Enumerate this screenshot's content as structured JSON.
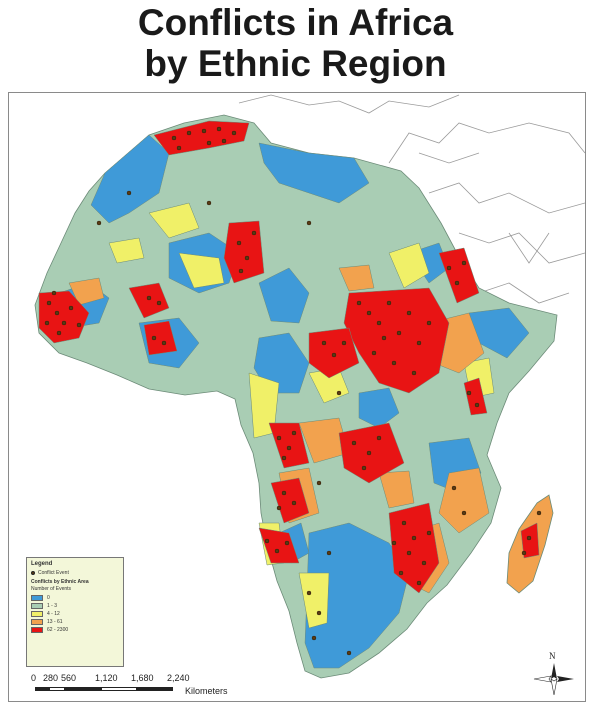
{
  "title": {
    "line1": "Conflicts in Africa",
    "line2": "by Ethnic Region"
  },
  "colors": {
    "ocean": "#ffffff",
    "neighbors": "#ffffff",
    "class_0": "#3f9ad8",
    "class_1_3": "#a9cdb4",
    "class_4_12": "#f0f068",
    "class_13_61": "#f2a24e",
    "class_62_2300": "#e81414",
    "event_dot": "#5a3a12",
    "legend_bg": "#f3f7d9"
  },
  "legend": {
    "title": "Legend",
    "event_label": "Conflict Event",
    "subtitle": "Conflicts by Ethnic Area",
    "subtitle2": "Number of Events",
    "classes": [
      {
        "label": "0",
        "color": "#3f9ad8"
      },
      {
        "label": "1 - 3",
        "color": "#a9cdb4"
      },
      {
        "label": "4 - 12",
        "color": "#f0f068"
      },
      {
        "label": "13 - 61",
        "color": "#f2a24e"
      },
      {
        "label": "62 - 2300",
        "color": "#e81414"
      }
    ]
  },
  "scale_bar": {
    "ticks": [
      "0",
      "280",
      "560",
      "1,120",
      "1,680",
      "2,240"
    ],
    "unit": "Kilometers"
  },
  "north_arrow": {
    "label": "N",
    "icon": "compass-rose-icon"
  }
}
